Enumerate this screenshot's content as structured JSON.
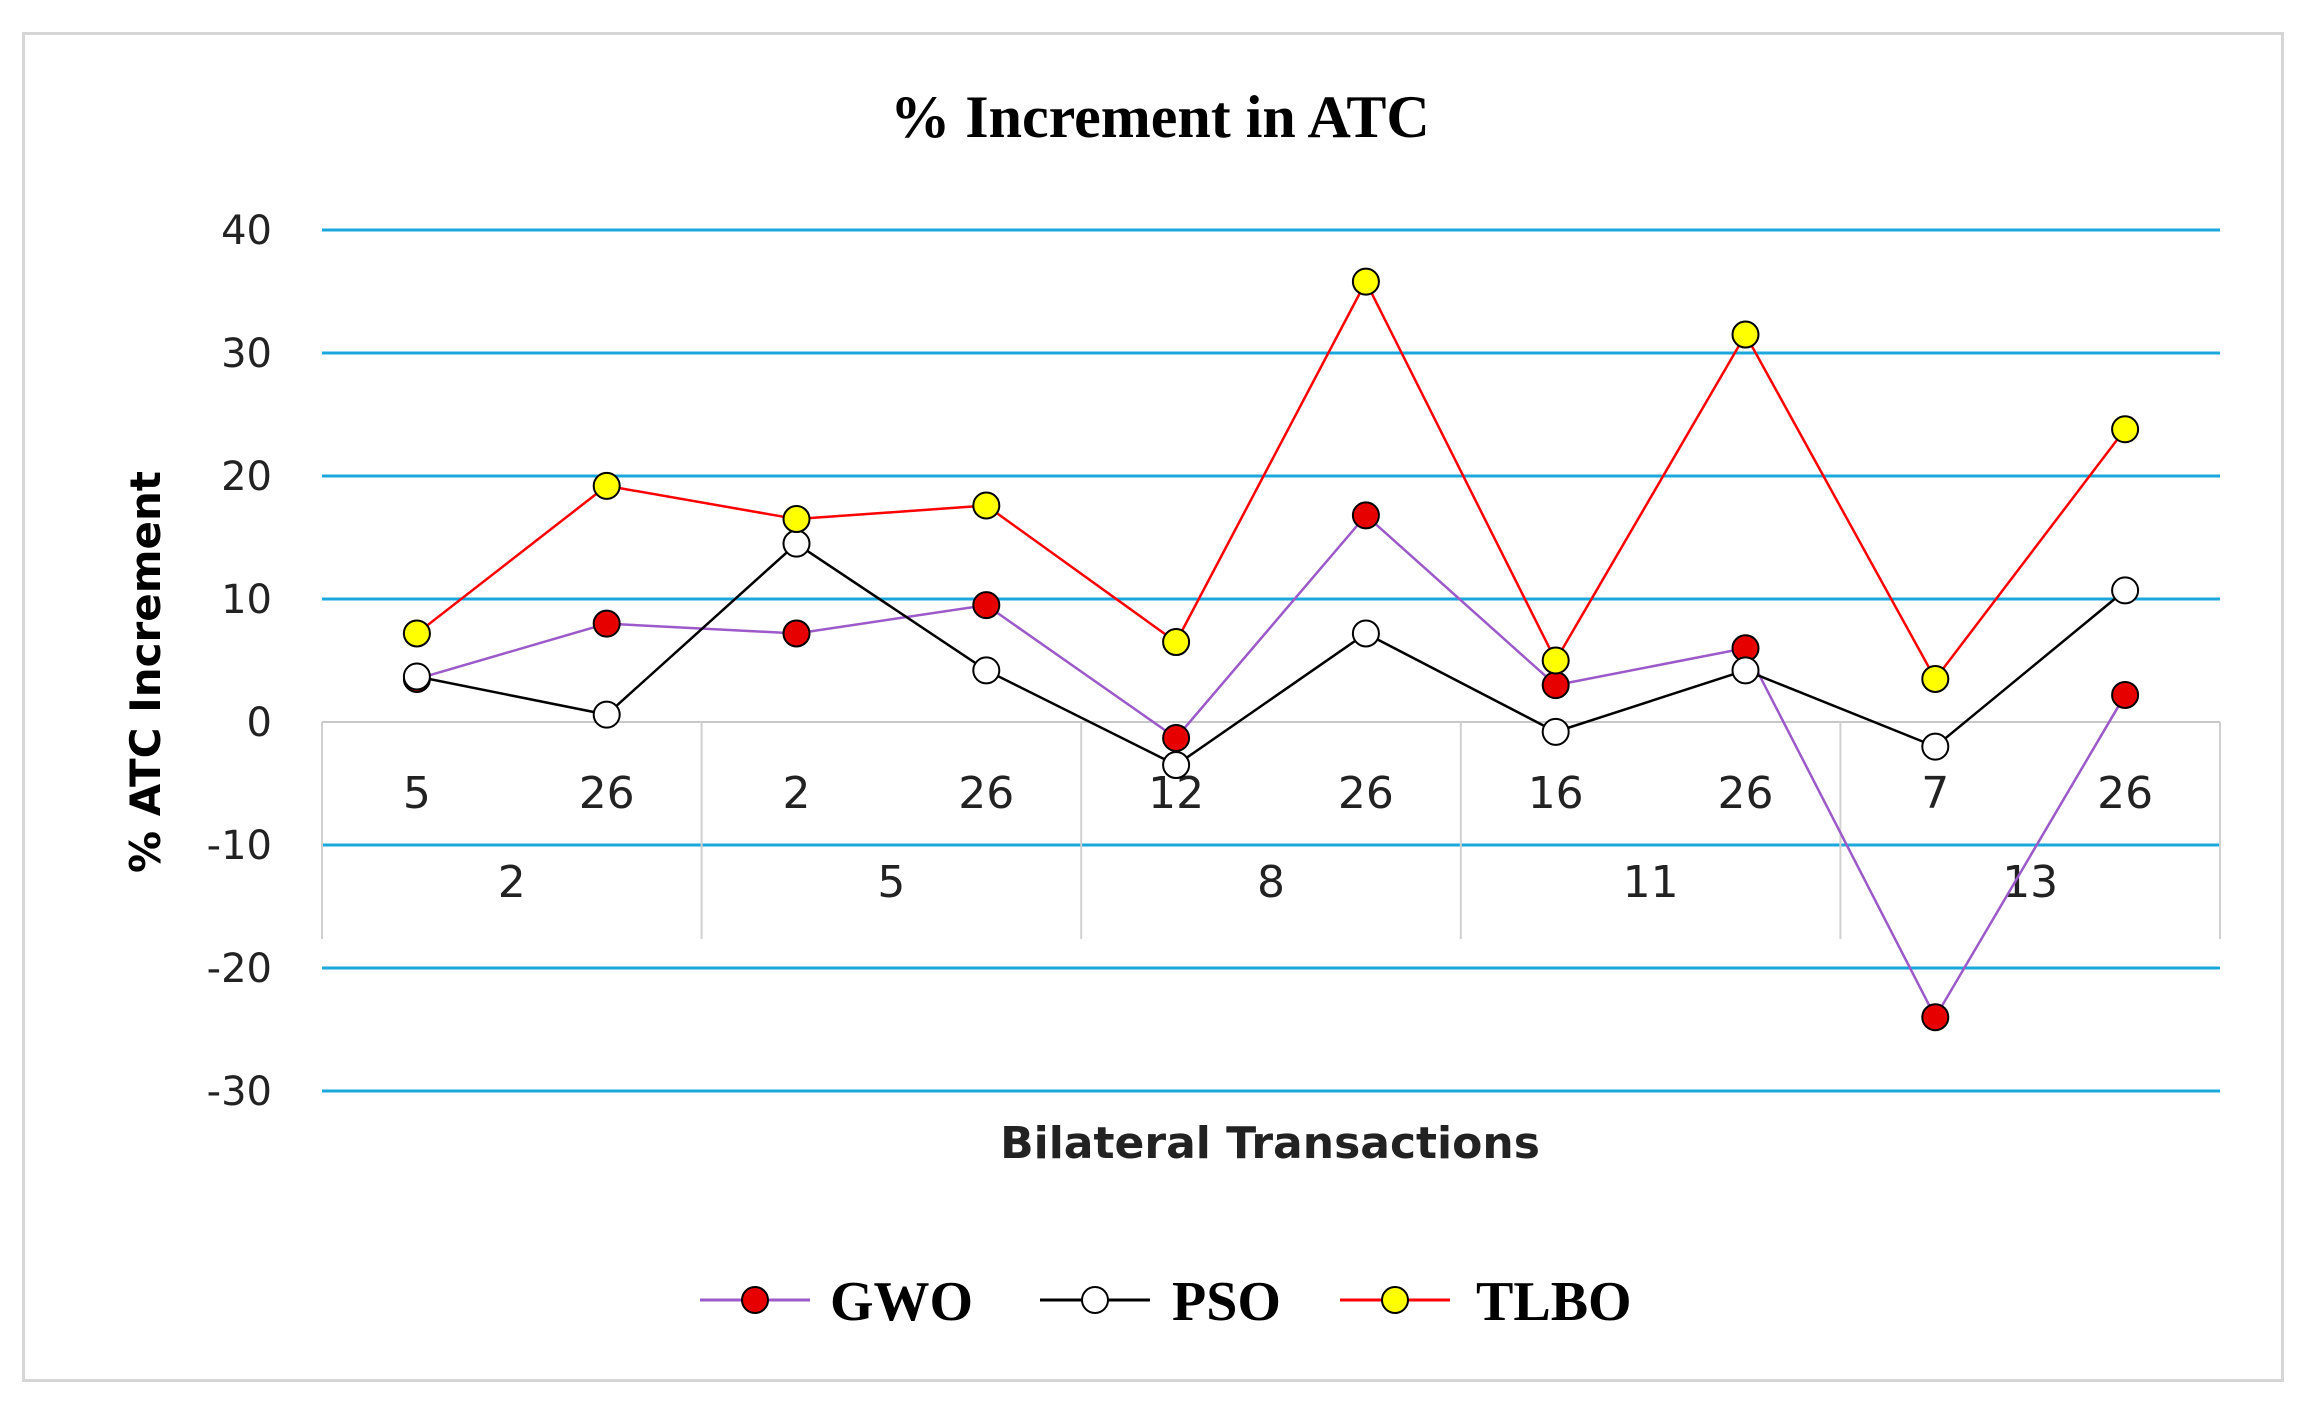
{
  "chart_data": {
    "type": "line",
    "title": "% Increment in ATC",
    "xlabel": "Bilateral Transactions",
    "ylabel": "% ATC Increment",
    "ylim": [
      -30,
      40
    ],
    "yticks": [
      "40",
      "30",
      "20",
      "10",
      "0",
      "-10",
      "-20",
      "-30"
    ],
    "yticks_values": [
      40,
      30,
      20,
      10,
      0,
      -10,
      -20,
      -30
    ],
    "categories": [
      "5",
      "26",
      "2",
      "26",
      "12",
      "26",
      "16",
      "26",
      "7",
      "26"
    ],
    "groups": [
      {
        "label": "2",
        "span": 2
      },
      {
        "label": "5",
        "span": 2
      },
      {
        "label": "8",
        "span": 2
      },
      {
        "label": "11",
        "span": 2
      },
      {
        "label": "13",
        "span": 2
      }
    ],
    "series": [
      {
        "name": "GWO",
        "line_color": "#9b59c9",
        "marker_fill": "#e60000",
        "values": [
          3.5,
          8,
          7.2,
          9.5,
          -1.3,
          16.8,
          3,
          6,
          -24,
          2.2
        ]
      },
      {
        "name": "PSO",
        "line_color": "#000000",
        "marker_fill": "#ffffff",
        "values": [
          3.7,
          0.6,
          14.5,
          4.2,
          -3.5,
          7.2,
          -0.8,
          4.2,
          -2,
          10.7
        ]
      },
      {
        "name": "TLBO",
        "line_color": "#ff0000",
        "marker_fill": "#ffff00",
        "values": [
          7.2,
          19.2,
          16.5,
          17.6,
          6.5,
          35.8,
          5,
          31.5,
          3.5,
          23.8
        ]
      }
    ],
    "grid": true,
    "grid_color": "#1aa7dc",
    "legend": "bottom"
  }
}
